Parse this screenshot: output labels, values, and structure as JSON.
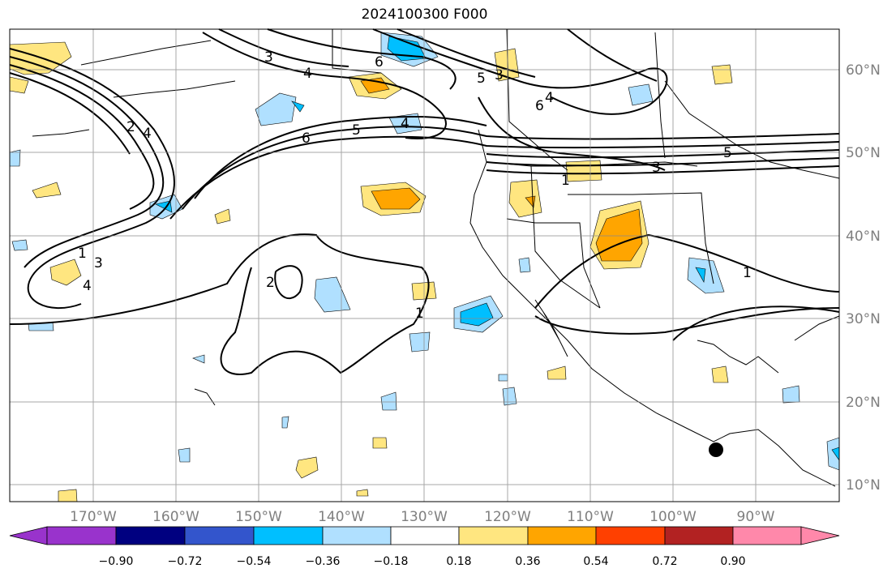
{
  "title": "2024100300 F000",
  "map": {
    "lon_labels": [
      "170°W",
      "160°W",
      "150°W",
      "140°W",
      "130°W",
      "120°W",
      "110°W",
      "100°W",
      "90°W"
    ],
    "lat_labels": [
      "60°N",
      "50°N",
      "40°N",
      "30°N",
      "20°N",
      "10°N"
    ],
    "contour_labels": [
      "1",
      "2",
      "3",
      "4",
      "5",
      "6"
    ],
    "marker": "storm center dot"
  },
  "colorbar": {
    "tick_labels": [
      "−0.90",
      "−0.72",
      "−0.54",
      "−0.36",
      "−0.18",
      "0.18",
      "0.36",
      "0.54",
      "0.72",
      "0.90"
    ],
    "colors": [
      "#9933cc",
      "#000080",
      "#3355cc",
      "#00bfff",
      "#b0e0ff",
      "#ffffff",
      "#ffe680",
      "#ffa500",
      "#ff4000",
      "#b22222",
      "#ff88aa"
    ]
  }
}
